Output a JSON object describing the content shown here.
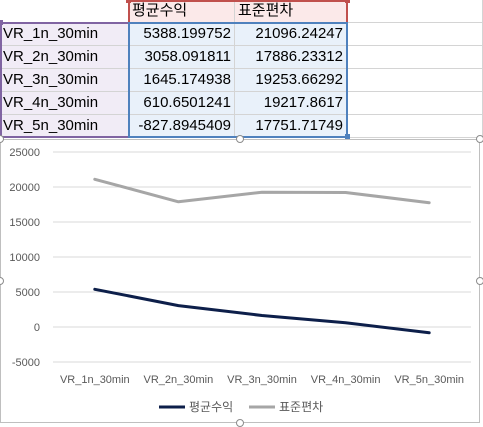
{
  "sheet": {
    "header": [
      "",
      "평균수익",
      "표준편차"
    ],
    "rows": [
      {
        "label": "VR_1n_30min",
        "mean": "5388.199752",
        "std": "21096.24247"
      },
      {
        "label": "VR_2n_30min",
        "mean": "3058.091811",
        "std": "17886.23312"
      },
      {
        "label": "VR_3n_30min",
        "mean": "1645.174938",
        "std": "19253.66292"
      },
      {
        "label": "VR_4n_30min",
        "mean": "610.6501241",
        "std": "19217.8617"
      },
      {
        "label": "VR_5n_30min",
        "mean": "-827.8945409",
        "std": "17751.71749"
      }
    ]
  },
  "chart_data": {
    "type": "line",
    "title": "",
    "categories": [
      "VR_1n_30min",
      "VR_2n_30min",
      "VR_3n_30min",
      "VR_4n_30min",
      "VR_5n_30min"
    ],
    "series": [
      {
        "name": "평균수익",
        "values": [
          5388.199752,
          3058.091811,
          1645.174938,
          610.6501241,
          -827.8945409
        ],
        "color": "#0d1f4a"
      },
      {
        "name": "표준편차",
        "values": [
          21096.24247,
          17886.23312,
          19253.66292,
          19217.8617,
          17751.71749
        ],
        "color": "#a6a6a6"
      }
    ],
    "ylim": [
      -5000,
      25000
    ],
    "yticks": [
      "25000",
      "20000",
      "15000",
      "10000",
      "5000",
      "0",
      "-5000"
    ],
    "ytick_values": [
      25000,
      20000,
      15000,
      10000,
      5000,
      0,
      -5000
    ],
    "grid": true,
    "legend": "bottom"
  }
}
